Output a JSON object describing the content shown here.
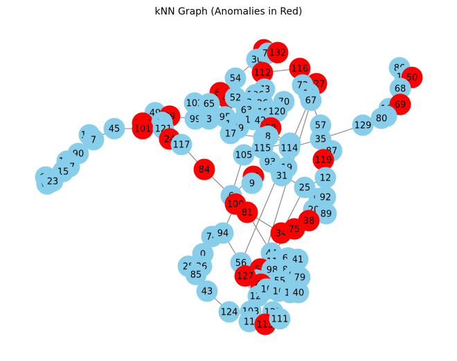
{
  "title": "kNN Graph (Anomalies in Red)",
  "colors": {
    "normal": "#87ceeb",
    "anomaly": "#ff0000",
    "edge": "#808080"
  },
  "nodes": [
    {
      "id": "27",
      "type": "anomaly"
    },
    {
      "id": "30",
      "type": "normal"
    },
    {
      "id": "76",
      "type": "normal"
    },
    {
      "id": "132",
      "type": "anomaly"
    },
    {
      "id": "116",
      "type": "anomaly"
    },
    {
      "id": "54",
      "type": "normal"
    },
    {
      "id": "112",
      "type": "anomaly"
    },
    {
      "id": "127",
      "type": "anomaly"
    },
    {
      "id": "72",
      "type": "normal"
    },
    {
      "id": "14",
      "type": "normal"
    },
    {
      "id": "67",
      "type": "normal"
    },
    {
      "id": "73",
      "type": "normal"
    },
    {
      "id": "106",
      "type": "normal"
    },
    {
      "id": "66",
      "type": "anomaly"
    },
    {
      "id": "48",
      "type": "anomaly"
    },
    {
      "id": "52",
      "type": "normal"
    },
    {
      "id": "37",
      "type": "normal"
    },
    {
      "id": "26",
      "type": "normal"
    },
    {
      "id": "70",
      "type": "normal"
    },
    {
      "id": "102",
      "type": "normal"
    },
    {
      "id": "65",
      "type": "normal"
    },
    {
      "id": "95",
      "type": "normal"
    },
    {
      "id": "63",
      "type": "normal"
    },
    {
      "id": "18",
      "type": "normal"
    },
    {
      "id": "120",
      "type": "normal"
    },
    {
      "id": "110",
      "type": "normal"
    },
    {
      "id": "42",
      "type": "normal"
    },
    {
      "id": "123",
      "type": "normal"
    },
    {
      "id": "59",
      "type": "normal"
    },
    {
      "id": "58",
      "type": "anomaly"
    },
    {
      "id": "17",
      "type": "normal"
    },
    {
      "id": "46",
      "type": "normal"
    },
    {
      "id": "8",
      "type": "normal"
    },
    {
      "id": "49",
      "type": "normal"
    },
    {
      "id": "39",
      "type": "anomaly"
    },
    {
      "id": "99",
      "type": "normal"
    },
    {
      "id": "3",
      "type": "normal"
    },
    {
      "id": "122",
      "type": "anomaly"
    },
    {
      "id": "60",
      "type": "normal"
    },
    {
      "id": "101",
      "type": "anomaly"
    },
    {
      "id": "121",
      "type": "normal"
    },
    {
      "id": "45",
      "type": "normal"
    },
    {
      "id": "107",
      "type": "normal"
    },
    {
      "id": "7",
      "type": "normal"
    },
    {
      "id": "24",
      "type": "anomaly"
    },
    {
      "id": "117",
      "type": "normal"
    },
    {
      "id": "90",
      "type": "normal"
    },
    {
      "id": "108",
      "type": "normal"
    },
    {
      "id": "97",
      "type": "normal"
    },
    {
      "id": "15",
      "type": "normal"
    },
    {
      "id": "95b",
      "label": "95",
      "type": "normal"
    },
    {
      "id": "62",
      "type": "normal"
    },
    {
      "id": "23",
      "type": "normal"
    },
    {
      "id": "84",
      "type": "anomaly"
    },
    {
      "id": "105",
      "type": "normal"
    },
    {
      "id": "115",
      "type": "normal"
    },
    {
      "id": "22",
      "type": "normal"
    },
    {
      "id": "114",
      "type": "normal"
    },
    {
      "id": "93",
      "type": "normal"
    },
    {
      "id": "2",
      "type": "normal"
    },
    {
      "id": "19",
      "type": "normal"
    },
    {
      "id": "31",
      "type": "normal"
    },
    {
      "id": "96",
      "type": "anomaly"
    },
    {
      "id": "9",
      "type": "normal"
    },
    {
      "id": "57",
      "type": "normal"
    },
    {
      "id": "35",
      "type": "normal"
    },
    {
      "id": "87",
      "type": "normal"
    },
    {
      "id": "129",
      "type": "normal"
    },
    {
      "id": "119",
      "type": "anomaly"
    },
    {
      "id": "12",
      "type": "normal"
    },
    {
      "id": "86",
      "type": "normal"
    },
    {
      "id": "126",
      "type": "normal"
    },
    {
      "id": "50",
      "type": "anomaly"
    },
    {
      "id": "68",
      "type": "normal"
    },
    {
      "id": "104",
      "type": "normal"
    },
    {
      "id": "69",
      "type": "anomaly"
    },
    {
      "id": "88",
      "type": "normal"
    },
    {
      "id": "80",
      "type": "normal"
    },
    {
      "id": "25",
      "type": "normal"
    },
    {
      "id": "91",
      "type": "normal"
    },
    {
      "id": "92",
      "type": "normal"
    },
    {
      "id": "20",
      "type": "normal"
    },
    {
      "id": "89",
      "type": "normal"
    },
    {
      "id": "6",
      "type": "normal"
    },
    {
      "id": "100",
      "type": "anomaly"
    },
    {
      "id": "81",
      "type": "anomaly"
    },
    {
      "id": "38",
      "type": "anomaly"
    },
    {
      "id": "34",
      "type": "anomaly"
    },
    {
      "id": "75",
      "type": "anomaly"
    },
    {
      "id": "74",
      "type": "normal"
    },
    {
      "id": "94",
      "type": "normal"
    },
    {
      "id": "0",
      "type": "normal"
    },
    {
      "id": "28",
      "type": "normal"
    },
    {
      "id": "36",
      "type": "normal"
    },
    {
      "id": "85",
      "type": "normal"
    },
    {
      "id": "43",
      "type": "normal"
    },
    {
      "id": "56",
      "type": "normal"
    },
    {
      "id": "44",
      "type": "normal"
    },
    {
      "id": "118",
      "type": "normal"
    },
    {
      "id": "64",
      "type": "normal"
    },
    {
      "id": "41",
      "type": "normal"
    },
    {
      "id": "51",
      "type": "anomaly"
    },
    {
      "id": "98",
      "type": "normal"
    },
    {
      "id": "82",
      "type": "normal"
    },
    {
      "id": "83",
      "type": "normal"
    },
    {
      "id": "79",
      "type": "normal"
    },
    {
      "id": "55",
      "type": "normal"
    },
    {
      "id": "53",
      "type": "normal"
    },
    {
      "id": "47",
      "type": "anomaly"
    },
    {
      "id": "128",
      "type": "normal"
    },
    {
      "id": "10",
      "type": "normal"
    },
    {
      "id": "16",
      "type": "normal"
    },
    {
      "id": "13",
      "type": "normal"
    },
    {
      "id": "40",
      "type": "normal"
    },
    {
      "id": "124",
      "type": "normal"
    },
    {
      "id": "103",
      "type": "normal"
    },
    {
      "id": "125",
      "type": "normal"
    },
    {
      "id": "11",
      "type": "normal"
    },
    {
      "id": "113",
      "type": "anomaly"
    },
    {
      "id": "111",
      "type": "normal"
    }
  ],
  "edges": [
    [
      "27",
      "30"
    ],
    [
      "30",
      "76"
    ],
    [
      "76",
      "132"
    ],
    [
      "30",
      "54"
    ],
    [
      "54",
      "66"
    ],
    [
      "112",
      "73"
    ],
    [
      "112",
      "116"
    ],
    [
      "116",
      "127"
    ],
    [
      "72",
      "14"
    ],
    [
      "14",
      "67"
    ],
    [
      "67",
      "57"
    ],
    [
      "106",
      "73"
    ],
    [
      "106",
      "37"
    ],
    [
      "37",
      "26"
    ],
    [
      "26",
      "70"
    ],
    [
      "66",
      "48"
    ],
    [
      "48",
      "52"
    ],
    [
      "52",
      "102"
    ],
    [
      "102",
      "65"
    ],
    [
      "65",
      "95"
    ],
    [
      "95",
      "63"
    ],
    [
      "63",
      "18"
    ],
    [
      "18",
      "120"
    ],
    [
      "120",
      "110"
    ],
    [
      "110",
      "42"
    ],
    [
      "42",
      "58"
    ],
    [
      "58",
      "59"
    ],
    [
      "59",
      "123"
    ],
    [
      "123",
      "17"
    ],
    [
      "17",
      "46"
    ],
    [
      "46",
      "8"
    ],
    [
      "95",
      "3"
    ],
    [
      "3",
      "99"
    ],
    [
      "99",
      "39"
    ],
    [
      "39",
      "49"
    ],
    [
      "49",
      "60"
    ],
    [
      "60",
      "122"
    ],
    [
      "122",
      "101"
    ],
    [
      "101",
      "121"
    ],
    [
      "121",
      "45"
    ],
    [
      "45",
      "7"
    ],
    [
      "7",
      "107"
    ],
    [
      "7",
      "90"
    ],
    [
      "90",
      "108"
    ],
    [
      "108",
      "97"
    ],
    [
      "97",
      "15"
    ],
    [
      "15",
      "95b"
    ],
    [
      "95b",
      "62"
    ],
    [
      "62",
      "23"
    ],
    [
      "121",
      "24"
    ],
    [
      "24",
      "117"
    ],
    [
      "117",
      "84"
    ],
    [
      "84",
      "6"
    ],
    [
      "105",
      "115"
    ],
    [
      "115",
      "22"
    ],
    [
      "22",
      "114"
    ],
    [
      "114",
      "35"
    ],
    [
      "35",
      "57"
    ],
    [
      "35",
      "87"
    ],
    [
      "35",
      "129"
    ],
    [
      "129",
      "80"
    ],
    [
      "80",
      "88"
    ],
    [
      "88",
      "104"
    ],
    [
      "104",
      "69"
    ],
    [
      "104",
      "68"
    ],
    [
      "68",
      "126"
    ],
    [
      "126",
      "50"
    ],
    [
      "126",
      "86"
    ],
    [
      "87",
      "119"
    ],
    [
      "119",
      "12"
    ],
    [
      "12",
      "25"
    ],
    [
      "25",
      "91"
    ],
    [
      "91",
      "92"
    ],
    [
      "92",
      "20"
    ],
    [
      "20",
      "89"
    ],
    [
      "20",
      "38"
    ],
    [
      "38",
      "75"
    ],
    [
      "75",
      "34"
    ],
    [
      "34",
      "44"
    ],
    [
      "25",
      "34"
    ],
    [
      "93",
      "2"
    ],
    [
      "2",
      "19"
    ],
    [
      "19",
      "31"
    ],
    [
      "31",
      "25"
    ],
    [
      "115",
      "93"
    ],
    [
      "105",
      "6"
    ],
    [
      "6",
      "96"
    ],
    [
      "96",
      "9"
    ],
    [
      "6",
      "100"
    ],
    [
      "100",
      "81"
    ],
    [
      "81",
      "34"
    ],
    [
      "100",
      "94"
    ],
    [
      "94",
      "74"
    ],
    [
      "74",
      "0"
    ],
    [
      "0",
      "36"
    ],
    [
      "36",
      "28"
    ],
    [
      "36",
      "85"
    ],
    [
      "85",
      "43"
    ],
    [
      "43",
      "124"
    ],
    [
      "124",
      "103"
    ],
    [
      "103",
      "111"
    ],
    [
      "111",
      "113"
    ],
    [
      "113",
      "125"
    ],
    [
      "125",
      "11"
    ],
    [
      "94",
      "56"
    ],
    [
      "56",
      "127"
    ],
    [
      "127",
      "51"
    ],
    [
      "51",
      "98"
    ],
    [
      "98",
      "82"
    ],
    [
      "82",
      "83"
    ],
    [
      "83",
      "79"
    ],
    [
      "44",
      "118"
    ],
    [
      "118",
      "64"
    ],
    [
      "64",
      "41"
    ],
    [
      "41",
      "79"
    ],
    [
      "51",
      "53"
    ],
    [
      "53",
      "47"
    ],
    [
      "47",
      "10"
    ],
    [
      "10",
      "16"
    ],
    [
      "16",
      "13"
    ],
    [
      "13",
      "40"
    ],
    [
      "10",
      "128"
    ],
    [
      "55",
      "82"
    ],
    [
      "128",
      "103"
    ],
    [
      "81",
      "44"
    ],
    [
      "44",
      "75"
    ],
    [
      "8",
      "22"
    ],
    [
      "58",
      "114"
    ],
    [
      "26",
      "120"
    ],
    [
      "132",
      "112"
    ],
    [
      "27",
      "112"
    ],
    [
      "72",
      "127"
    ],
    [
      "14",
      "116"
    ]
  ]
}
